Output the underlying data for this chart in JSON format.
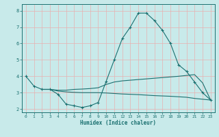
{
  "xlabel": "Humidex (Indice chaleur)",
  "bg_color": "#c8eaea",
  "line_color": "#1a7070",
  "grid_color": "#e8b0b0",
  "xlim": [
    -0.5,
    23.5
  ],
  "ylim": [
    1.8,
    8.4
  ],
  "xticks": [
    0,
    1,
    2,
    3,
    4,
    5,
    6,
    7,
    8,
    9,
    10,
    11,
    12,
    13,
    14,
    15,
    16,
    17,
    18,
    19,
    20,
    21,
    22,
    23
  ],
  "yticks": [
    2,
    3,
    4,
    5,
    6,
    7,
    8
  ],
  "line1_x": [
    0,
    1,
    2,
    3,
    4,
    5,
    6,
    7,
    8,
    9,
    10,
    11,
    12,
    13,
    14,
    15,
    16,
    17,
    18,
    19,
    20,
    21,
    22,
    23
  ],
  "line1_y": [
    4.0,
    3.4,
    3.2,
    3.2,
    2.9,
    2.3,
    2.2,
    2.1,
    2.2,
    2.4,
    3.7,
    5.0,
    6.3,
    7.0,
    7.85,
    7.85,
    7.4,
    6.8,
    6.0,
    4.7,
    4.3,
    3.65,
    3.0,
    2.55
  ],
  "line2_x": [
    2,
    3,
    4,
    5,
    6,
    7,
    8,
    9,
    10,
    11,
    12,
    13,
    14,
    15,
    16,
    17,
    18,
    19,
    20,
    21,
    22,
    23
  ],
  "line2_y": [
    3.2,
    3.2,
    3.1,
    3.05,
    3.02,
    3.0,
    3.0,
    3.0,
    2.98,
    2.95,
    2.92,
    2.9,
    2.88,
    2.85,
    2.82,
    2.8,
    2.78,
    2.75,
    2.72,
    2.65,
    2.6,
    2.55
  ],
  "line3_x": [
    2,
    3,
    4,
    5,
    6,
    7,
    8,
    9,
    10,
    11,
    12,
    13,
    14,
    15,
    16,
    17,
    18,
    19,
    20,
    21,
    22,
    23
  ],
  "line3_y": [
    3.2,
    3.2,
    3.15,
    3.15,
    3.2,
    3.22,
    3.25,
    3.3,
    3.5,
    3.65,
    3.72,
    3.76,
    3.8,
    3.84,
    3.88,
    3.92,
    3.96,
    4.0,
    4.05,
    4.1,
    3.6,
    2.55
  ]
}
